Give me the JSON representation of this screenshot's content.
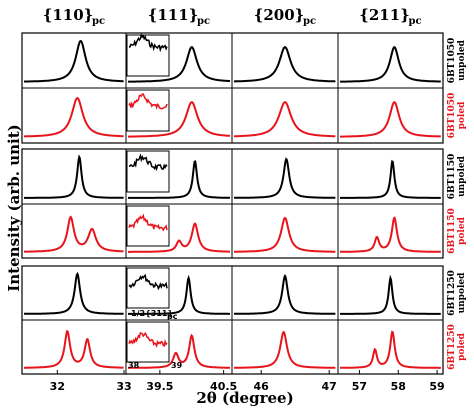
{
  "chart_data": {
    "type": "line",
    "xlabel": "2θ (degree)",
    "ylabel": "Intensity (arb. unit)",
    "columns": [
      {
        "label": "{110}",
        "sub": "pc",
        "ticks": [
          "32",
          "33"
        ],
        "xlim": [
          31.5,
          33.0
        ],
        "tick_values": [
          32,
          33
        ]
      },
      {
        "label": "{111}",
        "sub": "pc",
        "ticks": [
          "39.5",
          "40.5"
        ],
        "xlim": [
          39.0,
          40.6
        ],
        "tick_values": [
          39.5,
          40.5
        ]
      },
      {
        "label": "{200}",
        "sub": "pc",
        "ticks": [
          "46",
          "47"
        ],
        "xlim": [
          45.6,
          47.1
        ],
        "tick_values": [
          46,
          47
        ]
      },
      {
        "label": "{211}",
        "sub": "pc",
        "ticks": [
          "57",
          "58",
          "59"
        ],
        "xlim": [
          56.5,
          59.1
        ],
        "tick_values": [
          57,
          58,
          59
        ]
      }
    ],
    "rows": [
      {
        "sample": "6BT1050",
        "state": "unpoled",
        "color": "#000000"
      },
      {
        "sample": "6BT1050",
        "state": "poled",
        "color": "#e8141c"
      },
      {
        "sample": "6BT1150",
        "state": "unpoled",
        "color": "#000000"
      },
      {
        "sample": "6BT1150",
        "state": "poled",
        "color": "#e8141c"
      },
      {
        "sample": "6BT1250",
        "state": "unpoled",
        "color": "#000000"
      },
      {
        "sample": "6BT1250",
        "state": "poled",
        "color": "#e8141c"
      }
    ],
    "series_peaks": [
      [
        [
          [
            32.35,
            1.0,
            0.09
          ]
        ],
        [
          [
            40.0,
            0.85,
            0.1
          ]
        ],
        [
          [
            46.35,
            0.85,
            0.1
          ]
        ],
        [
          [
            57.9,
            0.85,
            0.14
          ]
        ]
      ],
      [
        [
          [
            32.3,
            0.95,
            0.1
          ]
        ],
        [
          [
            40.0,
            0.85,
            0.11
          ]
        ],
        [
          [
            46.35,
            0.85,
            0.11
          ]
        ],
        [
          [
            57.9,
            0.85,
            0.15
          ]
        ]
      ],
      [
        [
          [
            32.33,
            1.0,
            0.04
          ]
        ],
        [
          [
            40.05,
            0.9,
            0.04
          ]
        ],
        [
          [
            46.37,
            0.95,
            0.05
          ]
        ],
        [
          [
            57.85,
            0.9,
            0.06
          ]
        ]
      ],
      [
        [
          [
            32.2,
            0.85,
            0.06
          ],
          [
            32.52,
            0.55,
            0.07
          ]
        ],
        [
          [
            39.8,
            0.25,
            0.05
          ],
          [
            40.05,
            0.7,
            0.06
          ]
        ],
        [
          [
            46.35,
            0.85,
            0.07
          ]
        ],
        [
          [
            57.45,
            0.35,
            0.07
          ],
          [
            57.9,
            0.85,
            0.08
          ]
        ]
      ],
      [
        [
          [
            32.3,
            1.0,
            0.05
          ]
        ],
        [
          [
            39.95,
            0.9,
            0.04
          ]
        ],
        [
          [
            46.35,
            0.95,
            0.05
          ]
        ],
        [
          [
            57.8,
            0.9,
            0.06
          ]
        ]
      ],
      [
        [
          [
            32.15,
            0.9,
            0.05
          ],
          [
            32.45,
            0.7,
            0.05
          ]
        ],
        [
          [
            39.75,
            0.35,
            0.05
          ],
          [
            40.0,
            0.8,
            0.05
          ]
        ],
        [
          [
            46.33,
            0.9,
            0.06
          ]
        ],
        [
          [
            57.4,
            0.45,
            0.06
          ],
          [
            57.85,
            0.9,
            0.07
          ]
        ]
      ]
    ],
    "inset": {
      "label": "1/2{311}",
      "sub": "pc",
      "xlabels": [
        "38",
        "39"
      ],
      "levels": [
        0.7,
        0.6,
        0.6,
        0.45,
        0.55,
        0.45
      ]
    },
    "grid": false,
    "legend": "right-side row labels"
  }
}
